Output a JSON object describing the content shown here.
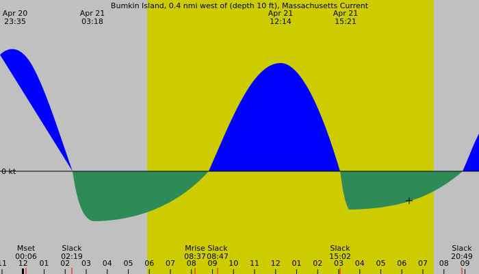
{
  "title": "Bumkin Island, 0.4 nmi west of (depth 10 ft), Massachusetts Current",
  "zero_label": "0 kt",
  "top_events": [
    {
      "date": "Apr 20",
      "time": "23:35"
    },
    {
      "date": "Apr 21",
      "time": "03:18"
    },
    {
      "date": "Apr 21",
      "time": "12:14"
    },
    {
      "date": "Apr 21",
      "time": "15:21"
    }
  ],
  "bottom_events": [
    {
      "label": "Mset",
      "time": "00:06"
    },
    {
      "label": "Slack",
      "time": "02:19"
    },
    {
      "label": "Mrise",
      "time": "08:37"
    },
    {
      "label": "Slack",
      "time": "08:47"
    },
    {
      "label": "Slack",
      "time": "15:02"
    },
    {
      "label": "Slack",
      "time": "20:49"
    }
  ],
  "hours": [
    "11",
    "12",
    "01",
    "02",
    "03",
    "04",
    "05",
    "06",
    "07",
    "08",
    "09",
    "10",
    "11",
    "12",
    "01",
    "02",
    "03",
    "04",
    "05",
    "06",
    "07",
    "08",
    "09"
  ]
}
